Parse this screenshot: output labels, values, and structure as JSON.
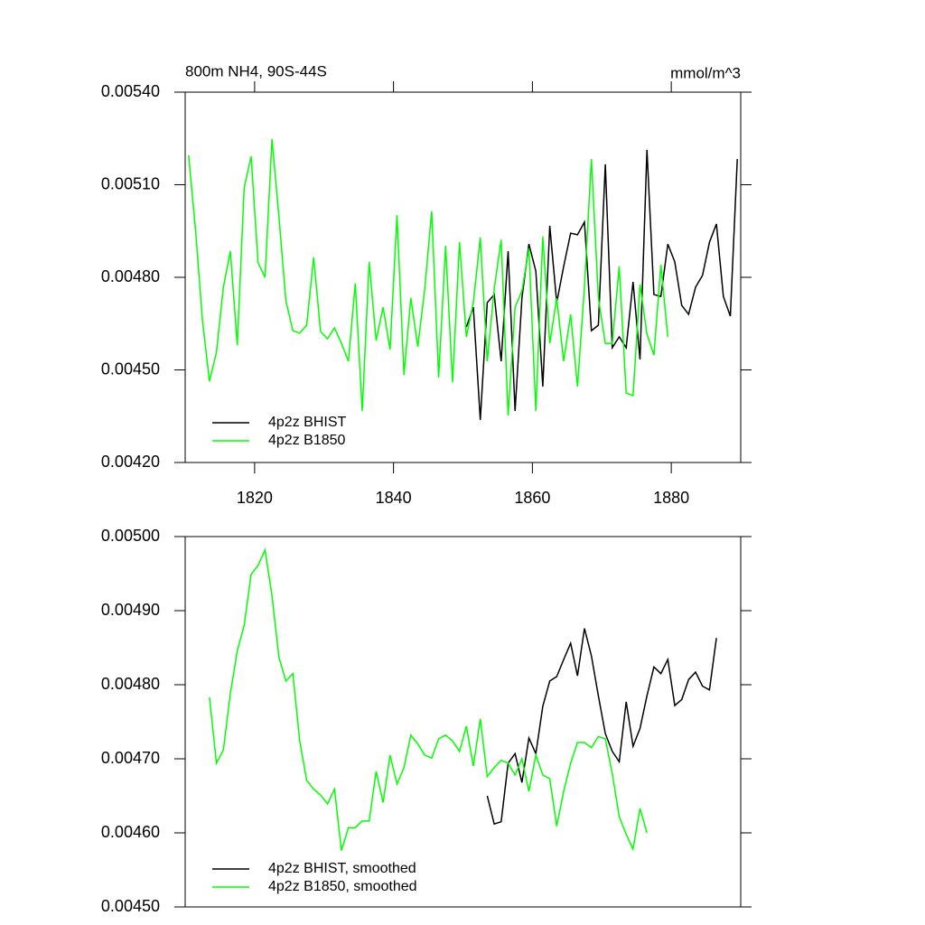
{
  "chart_data": [
    {
      "type": "line",
      "title": "800m NH4, 90S-44S",
      "units": "mmol/m^3",
      "xlim": [
        1810,
        1890
      ],
      "xticks": [
        1820,
        1840,
        1860,
        1880
      ],
      "ylim": [
        0.0042,
        0.0054
      ],
      "yticks": [
        {
          "value": 0.0042,
          "label": "0.00420"
        },
        {
          "value": 0.0045,
          "label": "0.00450"
        },
        {
          "value": 0.0048,
          "label": "0.00480"
        },
        {
          "value": 0.0051,
          "label": "0.00510"
        },
        {
          "value": 0.0054,
          "label": "0.00540"
        }
      ],
      "legend": "lower left",
      "series": [
        {
          "name": "4p2z BHIST",
          "color": "#000000",
          "x": [
            1850.5,
            1851.5,
            1852.5,
            1853.5,
            1854.5,
            1855.5,
            1856.5,
            1857.5,
            1858.5,
            1859.5,
            1860.5,
            1861.5,
            1862.5,
            1863.5,
            1864.5,
            1865.5,
            1866.5,
            1867.5,
            1868.5,
            1869.5,
            1870.5,
            1871.5,
            1872.5,
            1873.5,
            1874.5,
            1875.5,
            1876.5,
            1877.5,
            1878.5,
            1879.5,
            1880.5,
            1881.5,
            1882.5,
            1883.5,
            1884.5,
            1885.5,
            1886.5,
            1887.5,
            1888.5,
            1889.5
          ],
          "values": [
            0.004639,
            0.004703,
            0.004338,
            0.004718,
            0.004744,
            0.004528,
            0.004885,
            0.004367,
            0.004733,
            0.004908,
            0.00482,
            0.004446,
            0.004967,
            0.004718,
            0.004835,
            0.004943,
            0.004938,
            0.004979,
            0.004627,
            0.004645,
            0.005166,
            0.004572,
            0.004607,
            0.004572,
            0.004785,
            0.004534,
            0.005213,
            0.004744,
            0.004738,
            0.004908,
            0.00485,
            0.004709,
            0.00468,
            0.004768,
            0.004806,
            0.004914,
            0.004973,
            0.004738,
            0.004674,
            0.005183
          ]
        },
        {
          "name": "4p2z B1850",
          "color": "#00ff00",
          "x": [
            1810.5,
            1811.5,
            1812.5,
            1813.5,
            1814.5,
            1815.5,
            1816.5,
            1817.5,
            1818.5,
            1819.5,
            1820.5,
            1821.5,
            1822.5,
            1823.5,
            1824.5,
            1825.5,
            1826.5,
            1827.5,
            1828.5,
            1829.5,
            1830.5,
            1831.5,
            1832.5,
            1833.5,
            1834.5,
            1835.5,
            1836.5,
            1837.5,
            1838.5,
            1839.5,
            1840.5,
            1841.5,
            1842.5,
            1843.5,
            1844.5,
            1845.5,
            1846.5,
            1847.5,
            1848.5,
            1849.5,
            1850.5,
            1851.5,
            1852.5,
            1853.5,
            1854.5,
            1855.5,
            1856.5,
            1857.5,
            1858.5,
            1859.5,
            1860.5,
            1861.5,
            1862.5,
            1863.5,
            1864.5,
            1865.5,
            1866.5,
            1867.5,
            1868.5,
            1869.5,
            1870.5,
            1871.5,
            1872.5,
            1873.5,
            1874.5,
            1875.5,
            1876.5,
            1877.5,
            1878.5,
            1879.5
          ],
          "values": [
            0.005195,
            0.004952,
            0.004659,
            0.004463,
            0.004557,
            0.004768,
            0.004885,
            0.00458,
            0.00509,
            0.005192,
            0.004847,
            0.0048,
            0.005248,
            0.004996,
            0.004724,
            0.004627,
            0.004619,
            0.004645,
            0.004864,
            0.004624,
            0.004601,
            0.004636,
            0.004586,
            0.004528,
            0.00478,
            0.004367,
            0.00485,
            0.004595,
            0.004703,
            0.004566,
            0.005002,
            0.004484,
            0.004733,
            0.004575,
            0.004762,
            0.005014,
            0.004475,
            0.004902,
            0.00446,
            0.004914,
            0.004607,
            0.004718,
            0.004929,
            0.004528,
            0.004762,
            0.004922,
            0.004352,
            0.004703,
            0.004756,
            0.004894,
            0.004367,
            0.004932,
            0.004586,
            0.004733,
            0.004528,
            0.00468,
            0.004446,
            0.004768,
            0.005183,
            0.004733,
            0.004586,
            0.004586,
            0.004835,
            0.004425,
            0.004417,
            0.004777,
            0.004616,
            0.004548,
            0.004841,
            0.004607
          ]
        }
      ]
    },
    {
      "type": "line",
      "xlim": [
        1810,
        1890
      ],
      "ylim": [
        0.0045,
        0.005
      ],
      "yticks": [
        {
          "value": 0.0045,
          "label": "0.00450"
        },
        {
          "value": 0.0046,
          "label": "0.00460"
        },
        {
          "value": 0.0047,
          "label": "0.00470"
        },
        {
          "value": 0.0048,
          "label": "0.00480"
        },
        {
          "value": 0.0049,
          "label": "0.00490"
        },
        {
          "value": 0.005,
          "label": "0.00500"
        }
      ],
      "legend": "lower left",
      "series": [
        {
          "name": "4p2z BHIST, smoothed",
          "color": "#000000",
          "x": [
            1853.5,
            1854.5,
            1855.5,
            1856.5,
            1857.5,
            1858.5,
            1859.5,
            1860.5,
            1861.5,
            1862.5,
            1863.5,
            1864.5,
            1865.5,
            1866.5,
            1867.5,
            1868.5,
            1869.5,
            1870.5,
            1871.5,
            1872.5,
            1873.5,
            1874.5,
            1875.5,
            1876.5,
            1877.5,
            1878.5,
            1879.5,
            1880.5,
            1881.5,
            1882.5,
            1883.5,
            1884.5,
            1885.5,
            1886.5
          ],
          "values": [
            0.00465,
            0.004612,
            0.004615,
            0.004694,
            0.004707,
            0.004668,
            0.004728,
            0.004707,
            0.004771,
            0.004805,
            0.004811,
            0.004834,
            0.004856,
            0.004812,
            0.004876,
            0.004839,
            0.004785,
            0.004734,
            0.00471,
            0.004696,
            0.004777,
            0.004717,
            0.004741,
            0.004785,
            0.004824,
            0.004815,
            0.004834,
            0.004772,
            0.00478,
            0.004807,
            0.004817,
            0.004798,
            0.004793,
            0.004863
          ]
        },
        {
          "name": "4p2z B1850, smoothed",
          "color": "#00ff00",
          "x": [
            1813.5,
            1814.5,
            1815.5,
            1816.5,
            1817.5,
            1818.5,
            1819.5,
            1820.5,
            1821.5,
            1822.5,
            1823.5,
            1824.5,
            1825.5,
            1826.5,
            1827.5,
            1828.5,
            1829.5,
            1830.5,
            1831.5,
            1832.5,
            1833.5,
            1834.5,
            1835.5,
            1836.5,
            1837.5,
            1838.5,
            1839.5,
            1840.5,
            1841.5,
            1842.5,
            1843.5,
            1844.5,
            1845.5,
            1846.5,
            1847.5,
            1848.5,
            1849.5,
            1850.5,
            1851.5,
            1852.5,
            1853.5,
            1854.5,
            1855.5,
            1856.5,
            1857.5,
            1858.5,
            1859.5,
            1860.5,
            1861.5,
            1862.5,
            1863.5,
            1864.5,
            1865.5,
            1866.5,
            1867.5,
            1868.5,
            1869.5,
            1870.5,
            1871.5,
            1872.5,
            1873.5,
            1874.5,
            1875.5,
            1876.5
          ],
          "values": [
            0.004783,
            0.004694,
            0.004712,
            0.004788,
            0.004846,
            0.00488,
            0.004949,
            0.004961,
            0.004982,
            0.00492,
            0.004837,
            0.004805,
            0.004815,
            0.004724,
            0.004671,
            0.004659,
            0.004651,
            0.004639,
            0.004659,
            0.004576,
            0.004607,
            0.004607,
            0.004616,
            0.004616,
            0.004683,
            0.004641,
            0.004705,
            0.004666,
            0.004688,
            0.004732,
            0.00472,
            0.004705,
            0.004701,
            0.004727,
            0.004732,
            0.004724,
            0.00471,
            0.004744,
            0.00469,
            0.004754,
            0.004676,
            0.004688,
            0.004698,
            0.004694,
            0.004678,
            0.0047,
            0.004656,
            0.004705,
            0.004678,
            0.004673,
            0.004609,
            0.004656,
            0.004694,
            0.004722,
            0.004722,
            0.004715,
            0.00473,
            0.004727,
            0.00468,
            0.004622,
            0.004598,
            0.004578,
            0.004633,
            0.0046
          ]
        }
      ]
    }
  ]
}
